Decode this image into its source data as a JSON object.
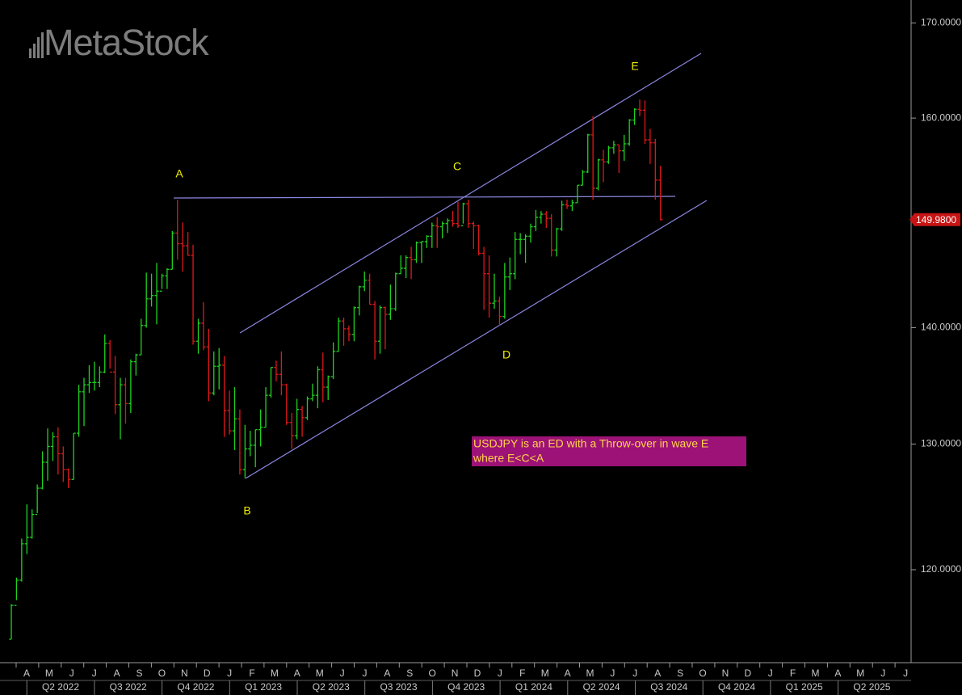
{
  "chart_data": {
    "type": "ohlc",
    "watermark": "MetaStock",
    "log_scale": true,
    "grid": false,
    "up_color": "#1fd21f",
    "down_color": "#e01818",
    "ylim": [
      113.1,
      172.5
    ],
    "yticks": [
      {
        "value": 120,
        "label": "120.0000"
      },
      {
        "value": 130,
        "label": "130.0000"
      },
      {
        "value": 140,
        "label": "140.0000"
      },
      {
        "value": 160,
        "label": "160.0000"
      },
      {
        "value": 170,
        "label": "170.0000"
      }
    ],
    "last_price": {
      "value": 149.98,
      "label": "149.9800"
    },
    "months": [
      "A",
      "M",
      "J",
      "J",
      "A",
      "S",
      "O",
      "N",
      "D",
      "J",
      "F",
      "M",
      "A",
      "M",
      "J",
      "J",
      "A",
      "S",
      "O",
      "N",
      "D",
      "J",
      "F",
      "M",
      "A",
      "M",
      "J",
      "J",
      "A",
      "S",
      "O",
      "N",
      "D",
      "J",
      "F",
      "M",
      "A",
      "M",
      "J",
      "J"
    ],
    "quarters": [
      "Q2 2022",
      "Q3 2022",
      "Q4 2022",
      "Q1 2023",
      "Q2 2023",
      "Q3 2023",
      "Q4 2023",
      "Q1 2024",
      "Q2 2024",
      "Q3 2024",
      "Q4 2024",
      "Q1 2025",
      "Q2 2025"
    ],
    "waves": [
      "A",
      "B",
      "C",
      "D",
      "E"
    ],
    "note": [
      "USDJPY is an ED with a Throw-over in wave E",
      "where E<C<A"
    ],
    "ohlc": [
      [
        114.8,
        117.4,
        114.8,
        117.3
      ],
      [
        117.3,
        119.4,
        117.7,
        119.2
      ],
      [
        119.2,
        122.4,
        119.1,
        122.0
      ],
      [
        122.0,
        125.1,
        121.2,
        122.5
      ],
      [
        122.5,
        124.7,
        122.4,
        124.3
      ],
      [
        124.3,
        126.7,
        124.4,
        126.4
      ],
      [
        126.4,
        129.4,
        126.3,
        128.5
      ],
      [
        128.5,
        131.3,
        127.0,
        129.8
      ],
      [
        129.8,
        131.0,
        128.6,
        130.6
      ],
      [
        130.6,
        131.4,
        127.5,
        129.2
      ],
      [
        129.2,
        129.8,
        126.9,
        127.9
      ],
      [
        127.9,
        128.0,
        126.4,
        127.1
      ],
      [
        127.1,
        130.9,
        127.1,
        130.9
      ],
      [
        130.9,
        135.0,
        130.6,
        134.4
      ],
      [
        134.4,
        135.6,
        131.5,
        135.0
      ],
      [
        135.0,
        136.7,
        134.3,
        135.2
      ],
      [
        135.2,
        137.0,
        134.5,
        135.2
      ],
      [
        135.2,
        136.6,
        134.8,
        136.1
      ],
      [
        136.1,
        139.4,
        136.0,
        138.6
      ],
      [
        138.6,
        138.9,
        136.4,
        136.1
      ],
      [
        136.1,
        137.5,
        132.5,
        133.3
      ],
      [
        133.3,
        135.6,
        130.4,
        135.0
      ],
      [
        135.0,
        135.6,
        131.7,
        133.4
      ],
      [
        133.4,
        137.2,
        132.6,
        137.0
      ],
      [
        137.0,
        137.7,
        135.8,
        137.6
      ],
      [
        137.6,
        140.8,
        137.6,
        140.2
      ],
      [
        140.2,
        145.0,
        140.0,
        142.6
      ],
      [
        142.6,
        144.9,
        141.9,
        142.9
      ],
      [
        142.9,
        145.9,
        140.3,
        143.3
      ],
      [
        143.3,
        144.9,
        143.5,
        144.7
      ],
      [
        144.7,
        145.4,
        143.5,
        145.3
      ],
      [
        145.3,
        148.9,
        145.3,
        148.7
      ],
      [
        148.7,
        151.9,
        146.2,
        147.7
      ],
      [
        147.7,
        149.7,
        145.1,
        147.5
      ],
      [
        147.5,
        148.8,
        146.6,
        146.6
      ],
      [
        146.6,
        147.6,
        138.5,
        138.8
      ],
      [
        138.8,
        140.8,
        137.7,
        140.4
      ],
      [
        140.4,
        142.3,
        138.0,
        138.3
      ],
      [
        138.3,
        139.9,
        133.6,
        134.3
      ],
      [
        134.3,
        137.9,
        134.1,
        136.6
      ],
      [
        136.6,
        138.2,
        134.6,
        136.7
      ],
      [
        136.7,
        137.5,
        130.6,
        132.8
      ],
      [
        132.8,
        134.5,
        130.8,
        131.1
      ],
      [
        131.1,
        134.8,
        129.5,
        132.1
      ],
      [
        132.1,
        132.9,
        127.5,
        127.9
      ],
      [
        127.9,
        131.6,
        127.2,
        129.6
      ],
      [
        129.6,
        131.1,
        129.0,
        129.9
      ],
      [
        129.9,
        131.2,
        128.1,
        131.2
      ],
      [
        131.2,
        132.9,
        129.8,
        131.4
      ],
      [
        131.4,
        134.8,
        131.4,
        134.1
      ],
      [
        134.1,
        136.5,
        133.9,
        136.5
      ],
      [
        136.5,
        137.1,
        135.3,
        135.9
      ],
      [
        135.9,
        137.9,
        134.1,
        135.0
      ],
      [
        135.0,
        135.1,
        131.6,
        131.8
      ],
      [
        131.8,
        132.6,
        129.6,
        130.7
      ],
      [
        130.7,
        133.8,
        130.4,
        132.9
      ],
      [
        132.9,
        133.2,
        130.6,
        132.2
      ],
      [
        132.2,
        134.0,
        132.0,
        133.8
      ],
      [
        133.8,
        135.1,
        133.6,
        134.1
      ],
      [
        134.1,
        136.6,
        133.0,
        136.3
      ],
      [
        136.3,
        137.8,
        133.5,
        134.8
      ],
      [
        134.8,
        135.8,
        133.7,
        135.7
      ],
      [
        135.7,
        138.7,
        135.5,
        137.9
      ],
      [
        137.9,
        140.9,
        137.9,
        140.6
      ],
      [
        140.6,
        140.9,
        138.4,
        139.9
      ],
      [
        139.9,
        140.2,
        138.8,
        139.4
      ],
      [
        139.4,
        141.9,
        138.8,
        141.8
      ],
      [
        141.8,
        143.8,
        141.1,
        143.7
      ],
      [
        143.7,
        145.1,
        143.3,
        144.3
      ],
      [
        144.3,
        144.9,
        142.1,
        142.1
      ],
      [
        142.1,
        142.4,
        137.2,
        138.8
      ],
      [
        138.8,
        142.0,
        137.7,
        141.8
      ],
      [
        141.8,
        141.9,
        138.1,
        141.2
      ],
      [
        141.2,
        143.9,
        140.7,
        141.7
      ],
      [
        141.7,
        145.0,
        141.5,
        144.9
      ],
      [
        144.9,
        146.6,
        144.9,
        145.4
      ],
      [
        145.4,
        146.6,
        144.5,
        146.4
      ],
      [
        146.4,
        147.4,
        144.4,
        146.2
      ],
      [
        146.2,
        147.9,
        145.9,
        147.8
      ],
      [
        147.8,
        147.9,
        145.9,
        147.9
      ],
      [
        147.9,
        148.5,
        147.3,
        148.4
      ],
      [
        148.4,
        149.7,
        147.3,
        149.4
      ],
      [
        149.4,
        150.2,
        147.3,
        149.3
      ],
      [
        149.3,
        149.8,
        148.2,
        149.6
      ],
      [
        149.6,
        150.1,
        148.7,
        149.9
      ],
      [
        149.9,
        150.8,
        149.3,
        149.6
      ],
      [
        149.6,
        151.7,
        149.2,
        149.4
      ],
      [
        149.4,
        151.6,
        149.6,
        151.5
      ],
      [
        151.5,
        151.9,
        149.2,
        149.6
      ],
      [
        149.6,
        149.8,
        147.2,
        149.4
      ],
      [
        149.4,
        149.5,
        146.6,
        146.8
      ],
      [
        146.8,
        147.4,
        141.6,
        144.9
      ],
      [
        144.9,
        146.6,
        140.9,
        142.2
      ],
      [
        142.2,
        144.9,
        141.7,
        142.4
      ],
      [
        142.4,
        142.8,
        140.2,
        141.0
      ],
      [
        141.0,
        145.9,
        140.8,
        144.6
      ],
      [
        144.6,
        146.4,
        143.4,
        144.9
      ],
      [
        144.9,
        148.8,
        144.4,
        148.1
      ],
      [
        148.1,
        148.7,
        146.7,
        148.1
      ],
      [
        148.1,
        148.6,
        145.9,
        148.4
      ],
      [
        148.4,
        149.6,
        147.8,
        149.3
      ],
      [
        149.3,
        150.9,
        148.9,
        150.2
      ],
      [
        150.2,
        150.8,
        149.6,
        150.5
      ],
      [
        150.5,
        150.8,
        149.2,
        150.1
      ],
      [
        150.1,
        150.5,
        146.5,
        147.1
      ],
      [
        147.1,
        149.2,
        146.5,
        149.1
      ],
      [
        149.1,
        151.8,
        148.9,
        151.4
      ],
      [
        151.4,
        151.9,
        151.0,
        151.3
      ],
      [
        151.3,
        151.9,
        150.8,
        151.6
      ],
      [
        151.6,
        153.3,
        151.6,
        153.3
      ],
      [
        153.3,
        154.8,
        153.3,
        154.6
      ],
      [
        154.6,
        158.4,
        154.5,
        158.3
      ],
      [
        158.3,
        160.2,
        151.9,
        153.0
      ],
      [
        153.0,
        155.9,
        152.8,
        155.8
      ],
      [
        155.8,
        156.8,
        153.6,
        155.6
      ],
      [
        155.6,
        157.2,
        155.4,
        157.0
      ],
      [
        157.0,
        157.7,
        156.4,
        157.3
      ],
      [
        157.3,
        157.3,
        154.5,
        156.7
      ],
      [
        156.7,
        158.3,
        155.7,
        157.4
      ],
      [
        157.4,
        159.9,
        157.2,
        159.8
      ],
      [
        159.8,
        161.0,
        159.3,
        160.9
      ],
      [
        160.9,
        161.9,
        160.2,
        160.8
      ],
      [
        160.8,
        161.8,
        157.4,
        157.8
      ],
      [
        157.8,
        158.9,
        155.4,
        157.5
      ],
      [
        157.5,
        157.9,
        151.9,
        153.8
      ],
      [
        153.8,
        155.2,
        149.9,
        149.98
      ]
    ]
  }
}
